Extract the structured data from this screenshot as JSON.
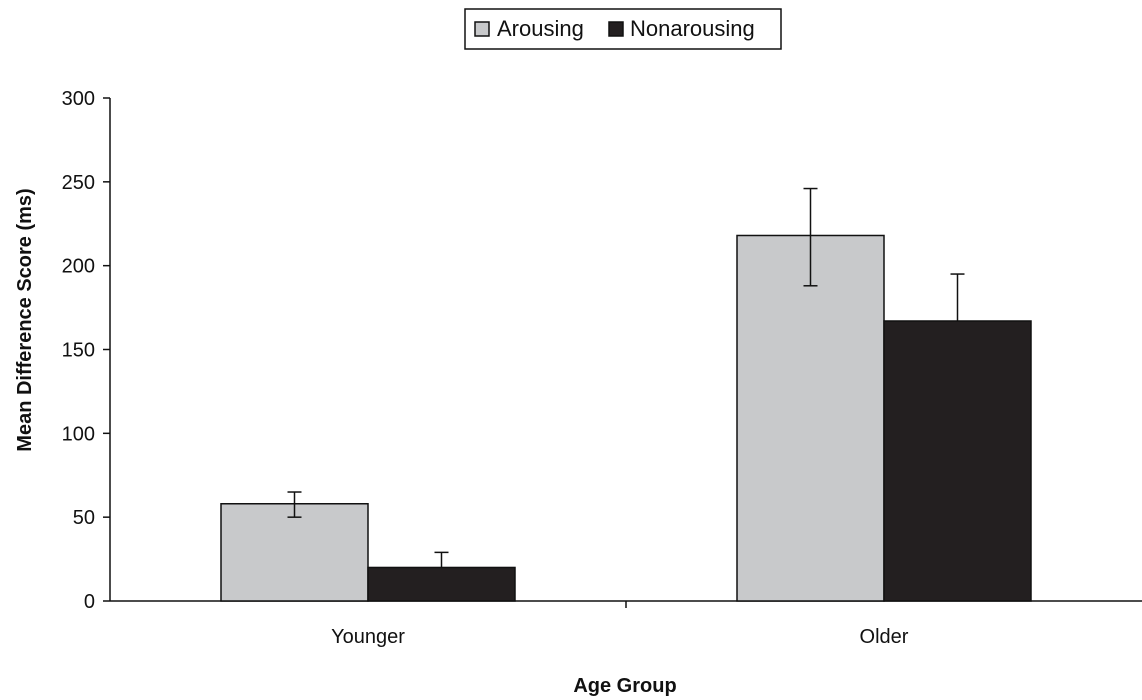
{
  "chart_data": {
    "type": "bar",
    "title": "",
    "xlabel": "Age Group",
    "ylabel": "Mean Difference Score (ms)",
    "categories": [
      "Younger",
      "Older"
    ],
    "ylim": [
      0,
      300
    ],
    "yticks": [
      0,
      50,
      100,
      150,
      200,
      250,
      300
    ],
    "grid": false,
    "legend_position": "top-center",
    "series": [
      {
        "name": "Arousing",
        "color": "#c8c9cb",
        "values": [
          58,
          218
        ],
        "error": [
          [
            50,
            65
          ],
          [
            188,
            246
          ]
        ]
      },
      {
        "name": "Nonarousing",
        "color": "#231f20",
        "values": [
          20,
          167
        ],
        "error": [
          [
            20,
            29
          ],
          [
            167,
            195
          ]
        ]
      }
    ]
  }
}
